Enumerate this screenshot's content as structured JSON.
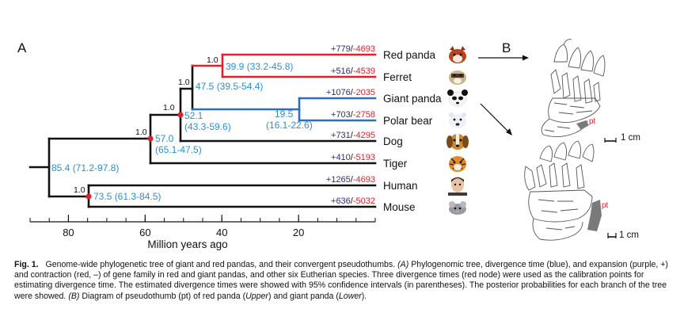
{
  "panel_a_letter": "A",
  "panel_b_letter": "B",
  "colors": {
    "divergence": "#2a8fd6",
    "expansion": "#2a2a8a",
    "contraction": "#e0202c",
    "red_branch": "#e0202c",
    "blue_branch": "#2a6fc0",
    "node": "#e0202c",
    "line": "#111111",
    "pseudothumb": "#7a7a7a"
  },
  "taxa": [
    {
      "name": "Red panda",
      "expansion": "+779",
      "contraction": "-4693",
      "icon": "red-panda-icon"
    },
    {
      "name": "Ferret",
      "expansion": "+516",
      "contraction": "-4539",
      "icon": "ferret-icon"
    },
    {
      "name": "Giant panda",
      "expansion": "+1076",
      "contraction": "-2035",
      "icon": "giant-panda-icon"
    },
    {
      "name": "Polar bear",
      "expansion": "+703",
      "contraction": "-2758",
      "icon": "polar-bear-icon"
    },
    {
      "name": "Dog",
      "expansion": "+731",
      "contraction": "-4295",
      "icon": "dog-icon"
    },
    {
      "name": "Tiger",
      "expansion": "+410",
      "contraction": "-5193",
      "icon": "tiger-icon"
    },
    {
      "name": "Human",
      "expansion": "+1265",
      "contraction": "-4693",
      "icon": "human-icon"
    },
    {
      "name": "Mouse",
      "expansion": "+636",
      "contraction": "-5032",
      "icon": "mouse-icon"
    }
  ],
  "nodes": [
    {
      "id": "rp_ferret",
      "age": 39.9,
      "ci": "(33.2-45.8)",
      "support": "1.0",
      "calibration": false,
      "age_label": "39.9",
      "label": "39.9 (33.2-45.8)"
    },
    {
      "id": "musteloid",
      "age": 47.5,
      "ci": "(39.5-54.4)",
      "support": "1.0",
      "calibration": false,
      "label": "47.5 (39.5-54.4)"
    },
    {
      "id": "bears",
      "age": 19.5,
      "ci": "(16.1-22.6)",
      "support": "",
      "calibration": false,
      "label": "19.5",
      "ci_label": "(16.1-22.6)"
    },
    {
      "id": "arctoid",
      "age": 52.1,
      "ci": "(43.3-59.6)",
      "support": "1.0",
      "calibration": true,
      "label": "52.1",
      "ci_label": "(43.3-59.6)"
    },
    {
      "id": "caniform",
      "age": 57.0,
      "ci": "(65.1-47.5)",
      "support": "1.0",
      "calibration": true,
      "label": "57.0",
      "ci_label": "(65.1-47.5)"
    },
    {
      "id": "eutheria",
      "age": 85.4,
      "ci": "(71.2-97.8)",
      "support": "",
      "calibration": false,
      "label": "85.4 (71.2-97.8)"
    },
    {
      "id": "euarchontoglires",
      "age": 73.5,
      "ci": "(61.3-84.5)",
      "support": "1.0",
      "calibration": true,
      "label": "73.5 (61.3-84.5)"
    }
  ],
  "axis": {
    "title": "Million years ago",
    "ticks": [
      {
        "value": 80,
        "label": "80"
      },
      {
        "value": 60,
        "label": "60"
      },
      {
        "value": 40,
        "label": "40"
      },
      {
        "value": 20,
        "label": "20"
      }
    ],
    "minor_ticks": [
      90,
      85,
      80,
      75,
      70,
      65,
      60,
      55,
      50,
      45,
      40,
      35,
      30,
      25,
      20,
      15,
      10,
      5,
      0
    ],
    "range": [
      90,
      0
    ]
  },
  "panel_b": {
    "upper_label": "pt",
    "lower_label": "pt",
    "upper_scale": "1 cm",
    "lower_scale": "1 cm"
  },
  "caption": {
    "fig_label": "Fig. 1.",
    "title": "Genome-wide phylogenetic tree of giant and red pandas, and their convergent pseudothumbs.",
    "a_marker": "(A)",
    "a_text": "Phylogenomic tree, divergence time (blue), and expansion (purple, +) and contraction (red, –) of gene family in red and giant pandas, and other six Eutherian species. Three divergence times (red node) were used as the calibration points for estimating divergence time. The estimated divergence times were showed with 95% confidence intervals (in parentheses). The posterior probabilities for each branch of the tree were showed.",
    "b_marker": "(B)",
    "b_text_1": "Diagram of pseudothumb (pt) of red panda (",
    "upper": "Upper",
    "b_text_2": ") and giant panda (",
    "lower": "Lower",
    "b_text_3": ")."
  }
}
